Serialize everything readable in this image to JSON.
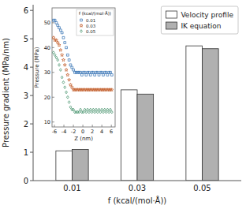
{
  "chart_data": [
    {
      "type": "bar",
      "xlabel": "f (kcal/(mol·Å))",
      "ylabel": "Pressure gradient (MPa/nm)",
      "categories": [
        "0.01",
        "0.03",
        "0.05"
      ],
      "series": [
        {
          "name": "Velocity profile",
          "color": "white",
          "values": [
            1.05,
            3.2,
            4.75
          ]
        },
        {
          "name": "IK equation",
          "color": "#b0b0b0",
          "values": [
            1.1,
            3.05,
            4.65
          ]
        }
      ],
      "ylim": [
        0,
        6.2
      ],
      "yticks": [
        0,
        1,
        2,
        3,
        4,
        5,
        6
      ],
      "legend": "upper right"
    },
    {
      "type": "scatter",
      "xlabel": "Z (nm)",
      "ylabel": "Pressure (MPa)",
      "x": [
        -6.2,
        -5.9,
        -5.6,
        -5.3,
        -5.0,
        -4.7,
        -4.4,
        -4.1,
        -3.8,
        -3.5,
        -3.2,
        -2.9,
        -2.6,
        -2.3,
        -2.0,
        -1.7,
        -1.4,
        -1.1,
        -0.8,
        -0.5,
        -0.2,
        0.1,
        0.4,
        0.7,
        1.0,
        1.3,
        1.6,
        1.9,
        2.2,
        2.5,
        2.8,
        3.1,
        3.4,
        3.7,
        4.0,
        4.3,
        4.6,
        4.9,
        5.2,
        5.5,
        5.8,
        6.1
      ],
      "series": [
        {
          "name": "0.01",
          "marker": "square",
          "values": [
            51,
            51,
            50,
            49,
            48,
            47,
            46,
            44,
            42,
            40,
            37,
            35,
            33,
            32,
            31,
            30,
            30,
            30,
            30,
            30,
            29,
            30,
            30,
            29,
            30,
            30,
            29,
            30,
            30,
            29,
            30,
            30,
            29,
            30,
            30,
            29,
            30,
            30,
            29,
            30,
            30,
            29
          ]
        },
        {
          "name": "0.03",
          "marker": "star",
          "values": [
            44,
            43,
            43,
            42,
            41,
            39,
            37,
            35,
            33,
            31,
            29,
            27,
            25,
            24,
            23,
            23,
            23,
            23,
            23,
            23,
            23,
            23,
            23,
            23,
            23,
            23,
            23,
            23,
            23,
            23,
            23,
            23,
            23,
            23,
            23,
            23,
            23,
            23,
            23,
            23,
            23,
            23
          ]
        },
        {
          "name": "0.05",
          "marker": "diamond",
          "values": [
            38,
            37,
            36,
            35,
            33,
            31,
            28,
            26,
            24,
            22,
            20,
            18,
            16,
            15,
            15,
            14,
            14,
            14,
            14,
            15,
            14,
            14,
            15,
            14,
            15,
            14,
            15,
            14,
            15,
            14,
            15,
            14,
            15,
            14,
            15,
            14,
            15,
            14,
            15,
            14,
            15,
            14
          ]
        }
      ],
      "xlim": [
        -6.5,
        6.8
      ],
      "ylim": [
        8,
        56
      ],
      "xticks": [
        -6,
        -4,
        -2,
        0,
        2,
        4,
        6
      ],
      "yticks": [
        10,
        20,
        30,
        40,
        50
      ],
      "legend": "upper right",
      "legend_title": "f (kcal/(mol·Å))"
    }
  ]
}
